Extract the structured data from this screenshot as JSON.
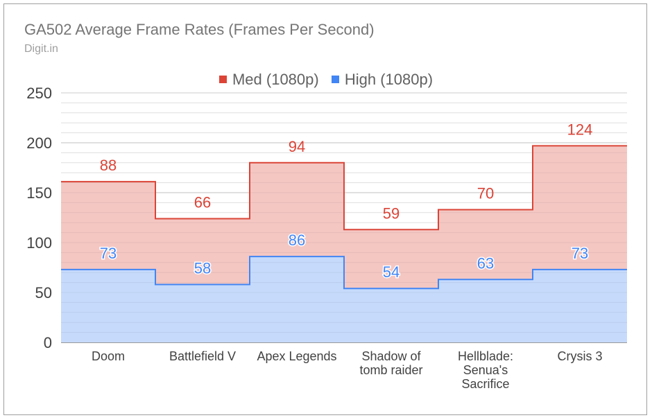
{
  "chart_data": {
    "type": "area",
    "title": "GA502 Average Frame Rates (Frames Per Second)",
    "subtitle": "Digit.in",
    "categories": [
      "Doom",
      "Battlefield V",
      "Apex Legends",
      "Shadow of tomb raider",
      "Hellblade: Senua's Sacrifice",
      "Crysis 3"
    ],
    "category_lines": [
      [
        "Doom"
      ],
      [
        "Battlefield V"
      ],
      [
        "Apex Legends"
      ],
      [
        "Shadow of",
        "tomb raider"
      ],
      [
        "Hellblade:",
        "Senua's",
        "Sacrifice"
      ],
      [
        "Crysis 3"
      ]
    ],
    "stacked": true,
    "stepped": true,
    "series": [
      {
        "name": "Med (1080p)",
        "values": [
          88,
          66,
          94,
          59,
          70,
          124
        ],
        "color": "#db4437"
      },
      {
        "name": "High (1080p)",
        "values": [
          73,
          58,
          86,
          54,
          63,
          73
        ],
        "color": "#4285f4"
      }
    ],
    "y_ticks": [
      "0",
      "50",
      "100",
      "150",
      "200",
      "250"
    ],
    "ylim": [
      0,
      250
    ],
    "grid": true,
    "legend_position": "top"
  }
}
